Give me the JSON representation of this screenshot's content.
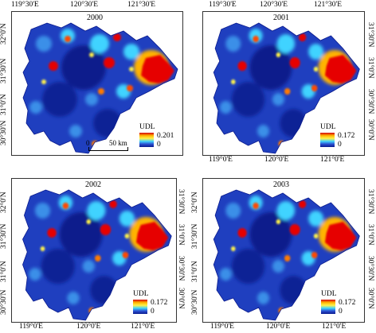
{
  "panels": [
    {
      "year": "2000",
      "top_ticks": [
        "119°30'E",
        "120°30'E",
        "121°30'E"
      ],
      "bottom_ticks": [],
      "left_ticks": [
        "32°0'N",
        "31°30'N",
        "31°0'N",
        "30°30'N"
      ],
      "right_ticks": [],
      "legend": {
        "title": "UDL",
        "max": "0.201",
        "min": "0"
      },
      "scale": {
        "zero": "0",
        "dist": "50 km"
      }
    },
    {
      "year": "2001",
      "top_ticks": [
        "119°30'E",
        "120°30'E",
        "121°30'E"
      ],
      "bottom_ticks": [
        "119°0'E",
        "120°0'E",
        "121°0'E"
      ],
      "left_ticks": [],
      "right_ticks": [
        "31°30'N",
        "31°0'N",
        "30°30'N",
        "30°0'N"
      ],
      "legend": {
        "title": "UDL",
        "max": "0.172",
        "min": "0"
      }
    },
    {
      "year": "2002",
      "top_ticks": [],
      "bottom_ticks": [
        "119°0'E",
        "120°0'E",
        "121°0'E"
      ],
      "left_ticks": [
        "32°0'N",
        "31°30'N",
        "31°0'N",
        "30°30'N"
      ],
      "right_ticks": [
        "31°30'N",
        "31°0'N",
        "30°30'N",
        "30°0'N"
      ],
      "legend": {
        "title": "UDL",
        "max": "0.172",
        "min": "0"
      }
    },
    {
      "year": "2003",
      "top_ticks": [],
      "bottom_ticks": [
        "119°0'E",
        "120°0'E",
        "121°0'E"
      ],
      "left_ticks": [
        "32°0'N",
        "31°30'N",
        "31°0'N",
        "30°30'N"
      ],
      "right_ticks": [
        "31°30'N",
        "31°0'N",
        "30°30'N",
        "30°0'N"
      ],
      "legend": {
        "title": "UDL",
        "max": "0.172",
        "min": "0"
      }
    }
  ],
  "colors": {
    "low": "#0a1a8c",
    "mid_low": "#2b4fd1",
    "mid": "#41d3ff",
    "mid_high": "#fff24a",
    "high": "#ffb300",
    "peak": "#d40000"
  }
}
